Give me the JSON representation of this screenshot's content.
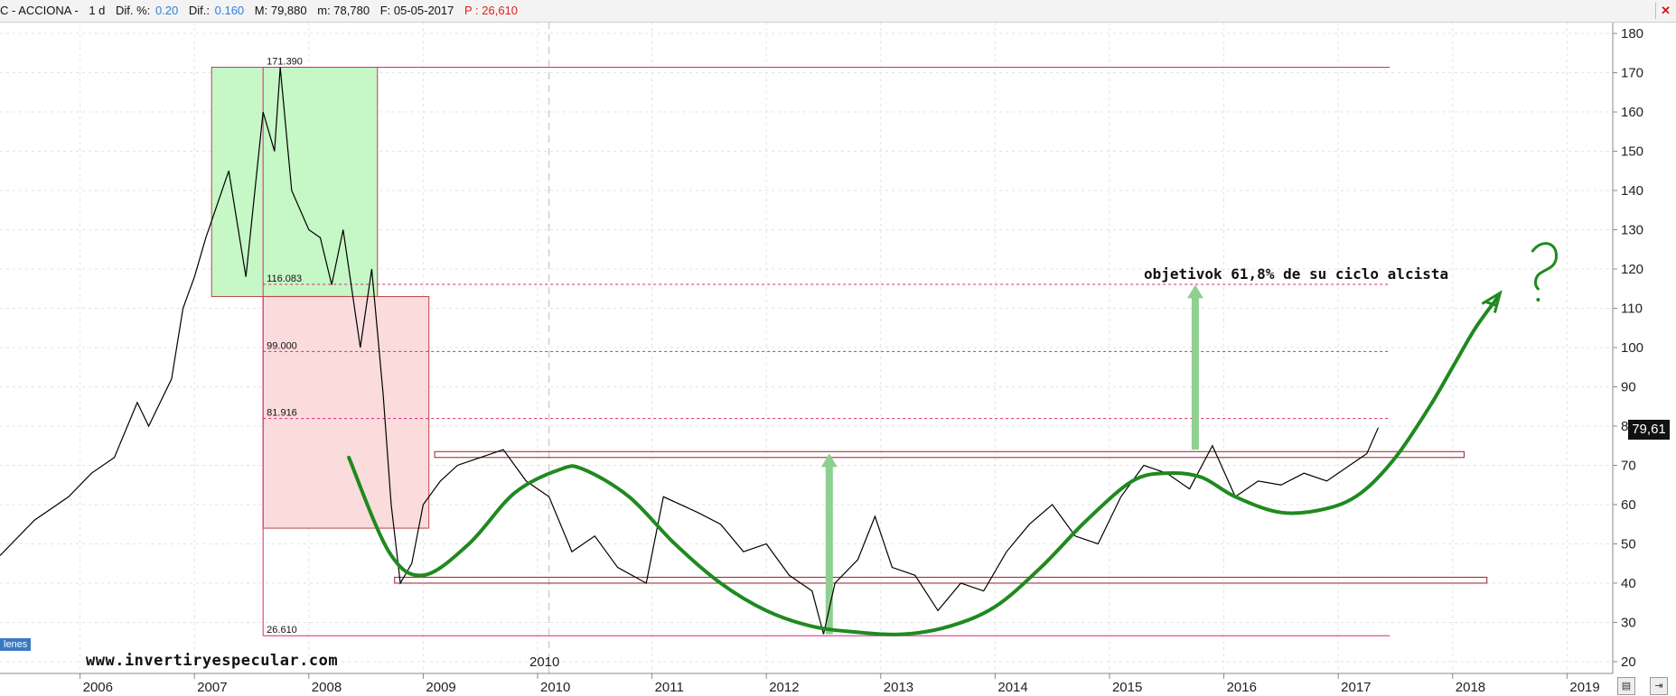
{
  "header": {
    "symbol": "C - ACCIONA -",
    "timeframe": "1 d",
    "dif_pct_label": "Dif. %:",
    "dif_pct_value": "0.20",
    "dif_label": "Dif.:",
    "dif_value": "0.160",
    "max": "M: 79,880",
    "min": "m: 78,780",
    "date": "F: 05-05-2017",
    "price_label": "P : 26,610",
    "close_icon": "close-icon"
  },
  "watermark": "www.invertiryespecular.com",
  "left_tag": "lenes",
  "last_price": "79,61",
  "year_marker": "2010",
  "nav_icons": [
    "chart-toggle-icon",
    "scroll-end-icon"
  ],
  "colors": {
    "price_line": "#000000",
    "cycle_curve": "#1f8a1f",
    "green_box": "#c6f7c6",
    "red_box": "#fbdcdc",
    "level_line": "#e0207a",
    "arrow": "#8fcf8f"
  },
  "chart_data": {
    "type": "line",
    "xlim": [
      2005.3,
      2019.4
    ],
    "ylim": [
      17,
      183
    ],
    "y_ticks": [
      20,
      30,
      40,
      50,
      60,
      70,
      80,
      90,
      100,
      110,
      120,
      130,
      140,
      150,
      160,
      170,
      180
    ],
    "x_ticks": [
      "2006",
      "2007",
      "2008",
      "2009",
      "2010",
      "2011",
      "2012",
      "2013",
      "2014",
      "2015",
      "2016",
      "2017",
      "2018",
      "2019"
    ],
    "grid": true,
    "series": [
      {
        "name": "",
        "x": [
          2005.3,
          2005.6,
          2005.9,
          2006.1,
          2006.3,
          2006.5,
          2006.6,
          2006.8,
          2006.9,
          2007.0,
          2007.1,
          2007.3,
          2007.45,
          2007.6,
          2007.7,
          2007.75,
          2007.85,
          2008.0,
          2008.1,
          2008.2,
          2008.3,
          2008.45,
          2008.55,
          2008.65,
          2008.72,
          2008.8,
          2008.9,
          2009.0,
          2009.15,
          2009.3,
          2009.5,
          2009.7,
          2009.9,
          2010.1,
          2010.3,
          2010.5,
          2010.7,
          2010.95,
          2011.1,
          2011.25,
          2011.4,
          2011.6,
          2011.8,
          2012.0,
          2012.2,
          2012.4,
          2012.5,
          2012.6,
          2012.8,
          2012.95,
          2013.1,
          2013.3,
          2013.5,
          2013.7,
          2013.9,
          2014.1,
          2014.3,
          2014.5,
          2014.7,
          2014.9,
          2015.1,
          2015.3,
          2015.5,
          2015.7,
          2015.9,
          2016.1,
          2016.3,
          2016.5,
          2016.7,
          2016.9,
          2017.1,
          2017.25,
          2017.35
        ],
        "y": [
          47,
          56,
          62,
          68,
          72,
          86,
          80,
          92,
          110,
          118,
          128,
          145,
          118,
          160,
          150,
          171.39,
          140,
          130,
          128,
          116,
          130,
          100,
          120,
          88,
          60,
          40,
          45,
          60,
          66,
          70,
          72,
          74,
          66,
          62,
          48,
          52,
          44,
          40,
          62,
          60,
          58,
          55,
          48,
          50,
          42,
          38,
          27,
          40,
          46,
          57,
          44,
          42,
          33,
          40,
          38,
          48,
          55,
          60,
          52,
          50,
          62,
          70,
          68,
          64,
          75,
          62,
          66,
          65,
          68,
          66,
          70,
          73,
          79.61
        ]
      },
      {
        "name": "",
        "x": [
          2008.35,
          2008.7,
          2009.0,
          2009.4,
          2009.8,
          2010.2,
          2010.4,
          2010.8,
          2011.2,
          2011.6,
          2012.0,
          2012.4,
          2012.8,
          2013.2,
          2013.6,
          2014.0,
          2014.4,
          2014.8,
          2015.2,
          2015.5,
          2015.8,
          2016.1,
          2016.5,
          2016.9,
          2017.2,
          2017.5,
          2017.8,
          2018.0,
          2018.2,
          2018.4
        ],
        "y": [
          72,
          48,
          42,
          50,
          63,
          69,
          69,
          62,
          50,
          40,
          33,
          29,
          27.5,
          27,
          29,
          34,
          44,
          56,
          66,
          68,
          67,
          62,
          58,
          59,
          63,
          72,
          85,
          95,
          105,
          113
        ]
      }
    ],
    "levels": [
      {
        "label": "171.390",
        "value": 171.39
      },
      {
        "label": "116.083",
        "value": 116.083
      },
      {
        "label": "99.000",
        "value": 99.0
      },
      {
        "label": "81.916",
        "value": 81.916
      },
      {
        "label": "26.610",
        "value": 26.61
      }
    ],
    "resistance_band": [
      72,
      73.5
    ],
    "support_band": [
      40,
      41.5
    ],
    "green_box": {
      "x": [
        2007.15,
        2008.6
      ],
      "y": [
        113,
        171.39
      ]
    },
    "red_box": {
      "x": [
        2007.6,
        2009.05
      ],
      "y": [
        54,
        113
      ]
    },
    "arrows": [
      {
        "x": 2012.55,
        "y_from": 27,
        "y_to": 73
      },
      {
        "x": 2015.75,
        "y_from": 74,
        "y_to": 116
      }
    ],
    "annotations": [
      {
        "text": "objetivok 61,8% de su ciclo alcista",
        "x": 2015.3,
        "y": 117.5
      },
      {
        "text": "?",
        "x": 2018.7,
        "y": 120
      }
    ]
  }
}
